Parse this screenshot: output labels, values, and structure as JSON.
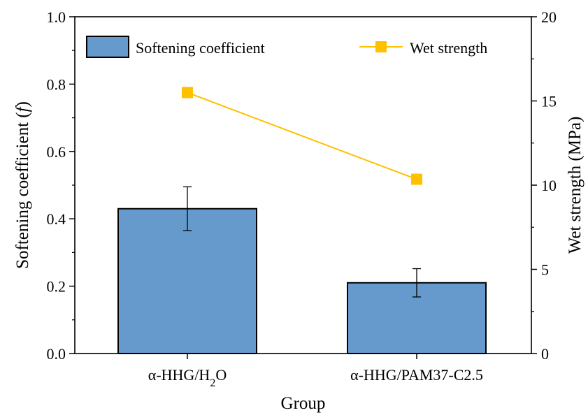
{
  "chart_data": {
    "type": "bar",
    "categories": [
      "α-HHG/H2O",
      "α-HHG/PAM37-C2.5"
    ],
    "category_labels": [
      {
        "pre": "α-HHG/H",
        "sub": "2",
        "post": "O"
      },
      {
        "pre": "α-HHG/PAM37-C2.5",
        "sub": "",
        "post": ""
      }
    ],
    "series": [
      {
        "name": "Softening coefficient",
        "type": "bar",
        "axis": "left",
        "values": [
          0.43,
          0.21
        ],
        "error": [
          0.065,
          0.042
        ],
        "color": "#6699CC"
      },
      {
        "name": "Wet strength",
        "type": "line",
        "axis": "right",
        "values": [
          15.5,
          10.35
        ],
        "color": "#FFC000"
      }
    ],
    "xlabel": "Group",
    "ylabel": "Softening coefficient (",
    "ylabel_symbol": "f",
    "ylabel_close": ")",
    "y2label": "Wet strength (MPa)",
    "ylim": [
      0,
      1.0
    ],
    "y2lim": [
      0,
      20
    ],
    "yticks": [
      "0.0",
      "0.2",
      "0.4",
      "0.6",
      "0.8",
      "1.0"
    ],
    "y2ticks": [
      "0",
      "5",
      "10",
      "15",
      "20"
    ],
    "grid": false,
    "legend_position": "top"
  }
}
